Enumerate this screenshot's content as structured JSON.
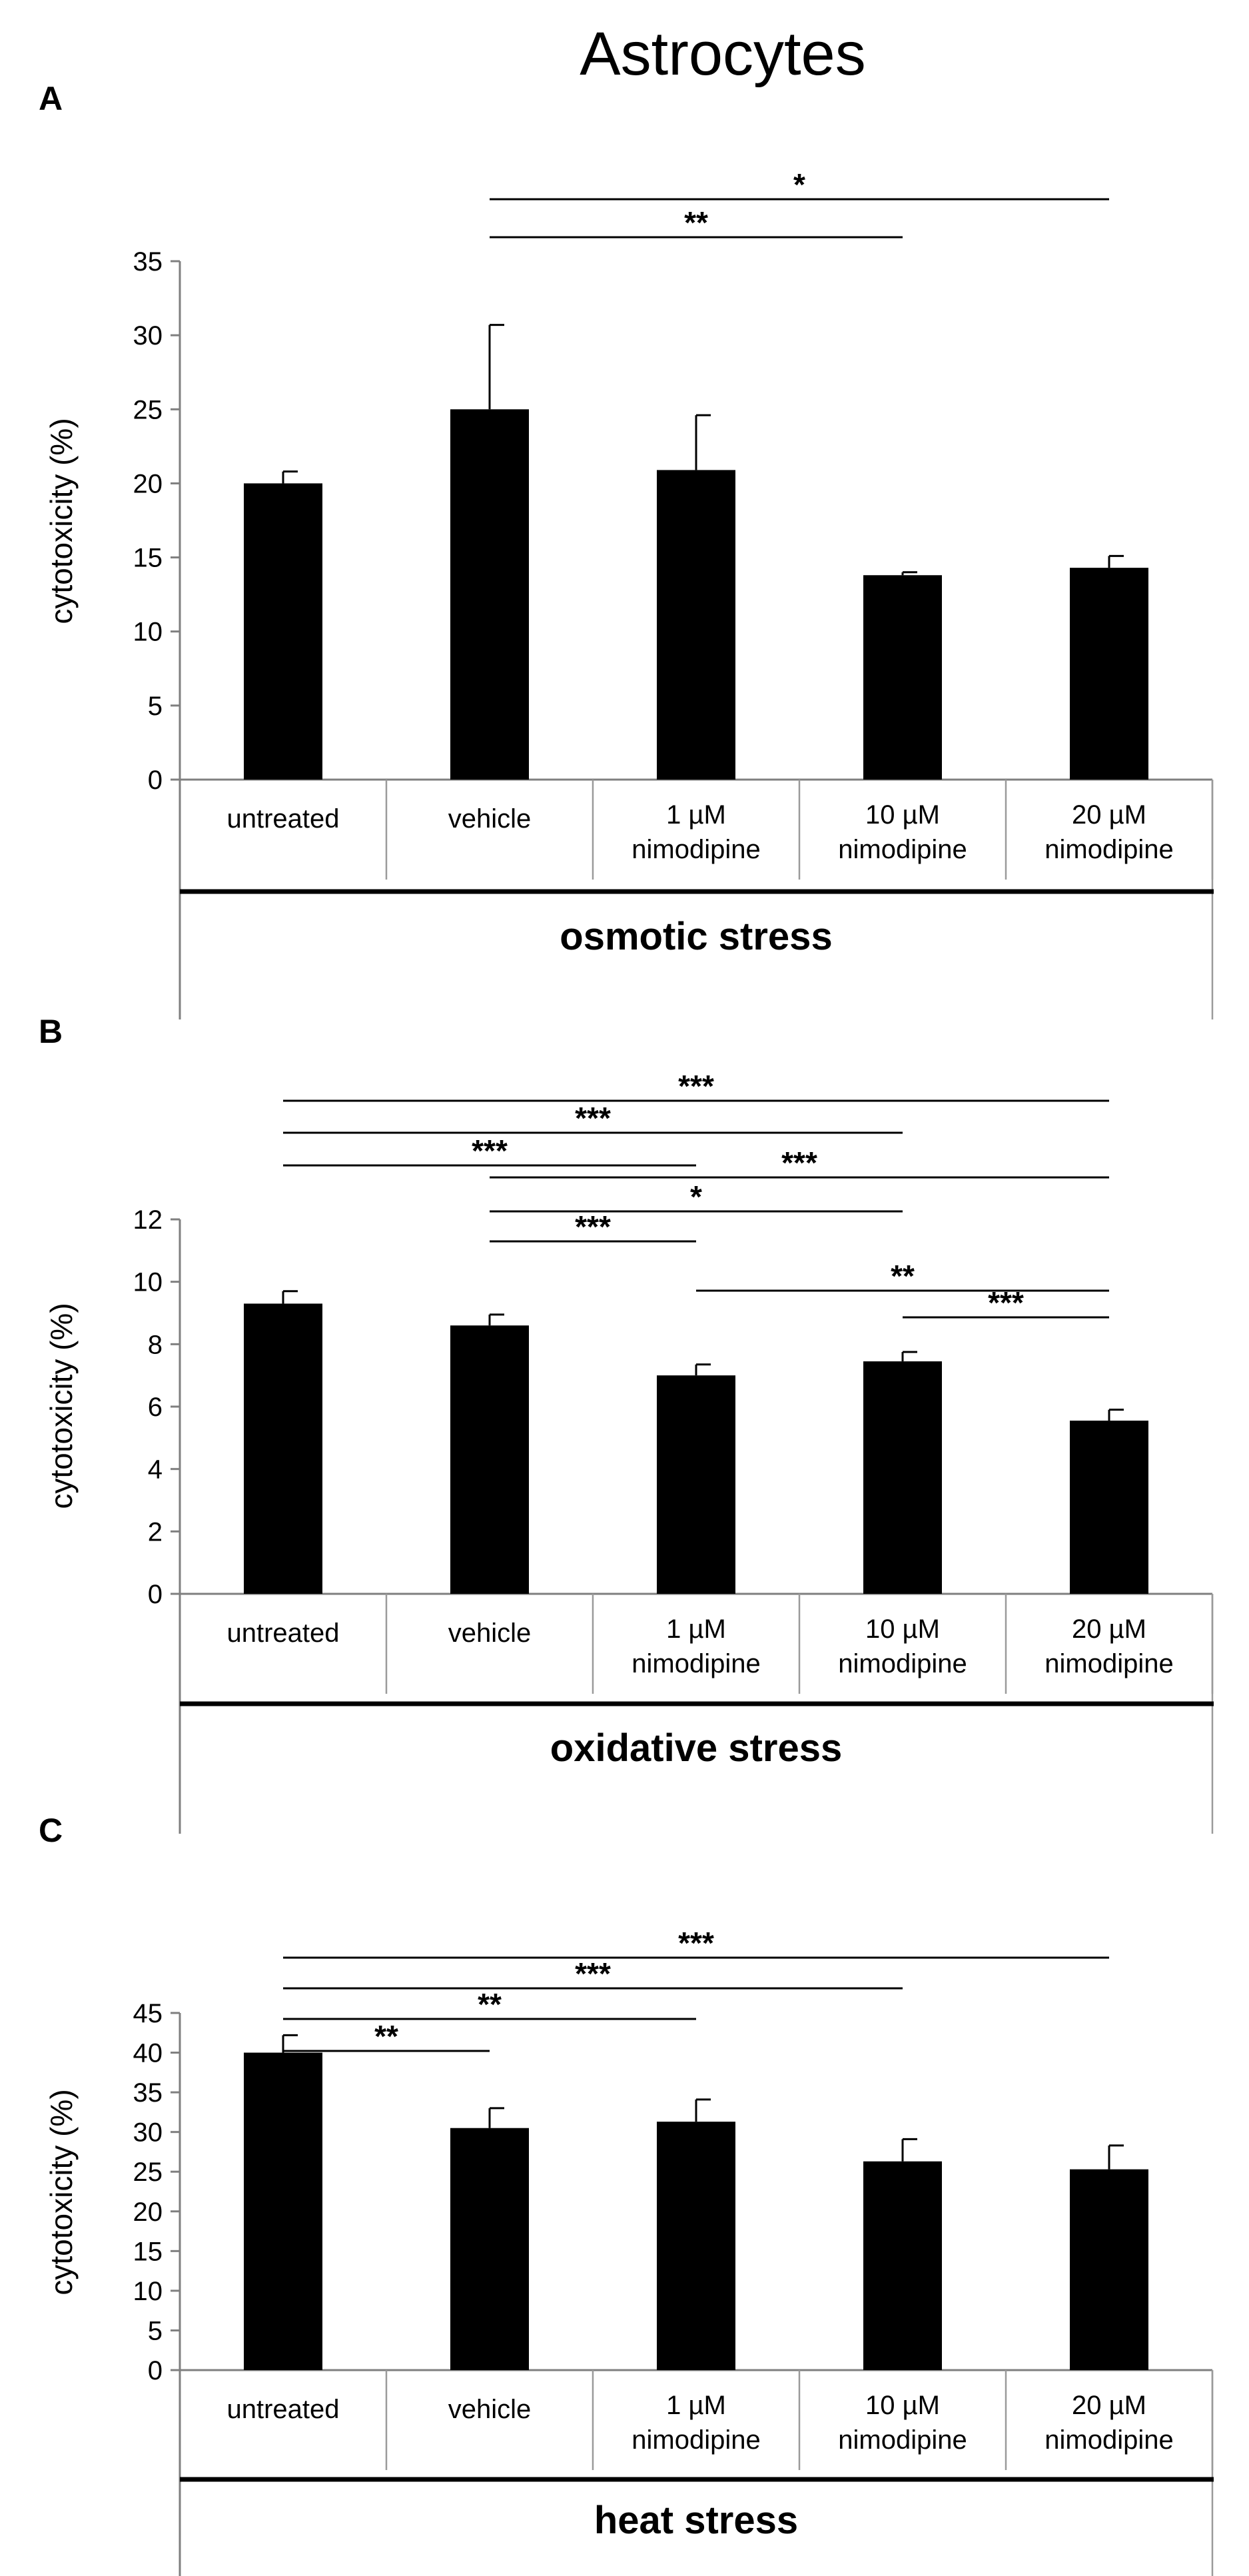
{
  "figure_title": "Astrocytes",
  "chart_data": [
    {
      "type": "bar",
      "panel": "A",
      "title": "osmotic stress",
      "ylabel": "cytotoxicity  (%)",
      "ylim": [
        0,
        35
      ],
      "yticks": [
        0,
        5,
        10,
        15,
        20,
        25,
        30,
        35
      ],
      "categories": [
        [
          "untreated"
        ],
        [
          "vehicle"
        ],
        [
          "1 µM",
          "nimodipine"
        ],
        [
          "10 µM",
          "nimodipine"
        ],
        [
          "20 µM",
          "nimodipine"
        ]
      ],
      "values": [
        20.0,
        25.0,
        20.9,
        13.8,
        14.3
      ],
      "errors": [
        0.8,
        5.7,
        3.7,
        0.2,
        0.8
      ],
      "significance": [
        {
          "from": 1,
          "to": 4,
          "label": "*"
        },
        {
          "from": 1,
          "to": 3,
          "label": "**"
        }
      ]
    },
    {
      "type": "bar",
      "panel": "B",
      "title": "oxidative stress",
      "ylabel": "cytotoxicity  (%)",
      "ylim": [
        0,
        12
      ],
      "yticks": [
        0,
        2,
        4,
        6,
        8,
        10,
        12
      ],
      "categories": [
        [
          "untreated"
        ],
        [
          "vehicle"
        ],
        [
          "1 µM",
          "nimodipine"
        ],
        [
          "10 µM",
          "nimodipine"
        ],
        [
          "20 µM",
          "nimodipine"
        ]
      ],
      "values": [
        9.3,
        8.6,
        7.0,
        7.45,
        5.55
      ],
      "errors": [
        0.4,
        0.35,
        0.35,
        0.3,
        0.35
      ],
      "significance": [
        {
          "from": 0,
          "to": 4,
          "label": "***"
        },
        {
          "from": 0,
          "to": 3,
          "label": "***"
        },
        {
          "from": 0,
          "to": 2,
          "label": "***"
        },
        {
          "from": 1,
          "to": 4,
          "label": "***"
        },
        {
          "from": 1,
          "to": 3,
          "label": "*"
        },
        {
          "from": 1,
          "to": 2,
          "label": "***"
        },
        {
          "from": 2,
          "to": 4,
          "label": "**"
        },
        {
          "from": 3,
          "to": 4,
          "label": "***"
        }
      ]
    },
    {
      "type": "bar",
      "panel": "C",
      "title": "heat stress",
      "ylabel": "cytotoxicity  (%)",
      "ylim": [
        0,
        45
      ],
      "yticks": [
        0,
        5,
        10,
        15,
        20,
        25,
        30,
        35,
        40,
        45
      ],
      "categories": [
        [
          "untreated"
        ],
        [
          "vehicle"
        ],
        [
          "1 µM",
          "nimodipine"
        ],
        [
          "10 µM",
          "nimodipine"
        ],
        [
          "20 µM",
          "nimodipine"
        ]
      ],
      "values": [
        40.0,
        30.5,
        31.3,
        26.3,
        25.3
      ],
      "errors": [
        2.2,
        2.5,
        2.8,
        2.8,
        3.0
      ],
      "significance": [
        {
          "from": 0,
          "to": 4,
          "label": "***"
        },
        {
          "from": 0,
          "to": 3,
          "label": "***"
        },
        {
          "from": 0,
          "to": 2,
          "label": "**"
        },
        {
          "from": 0,
          "to": 1,
          "label": "**"
        }
      ]
    }
  ]
}
